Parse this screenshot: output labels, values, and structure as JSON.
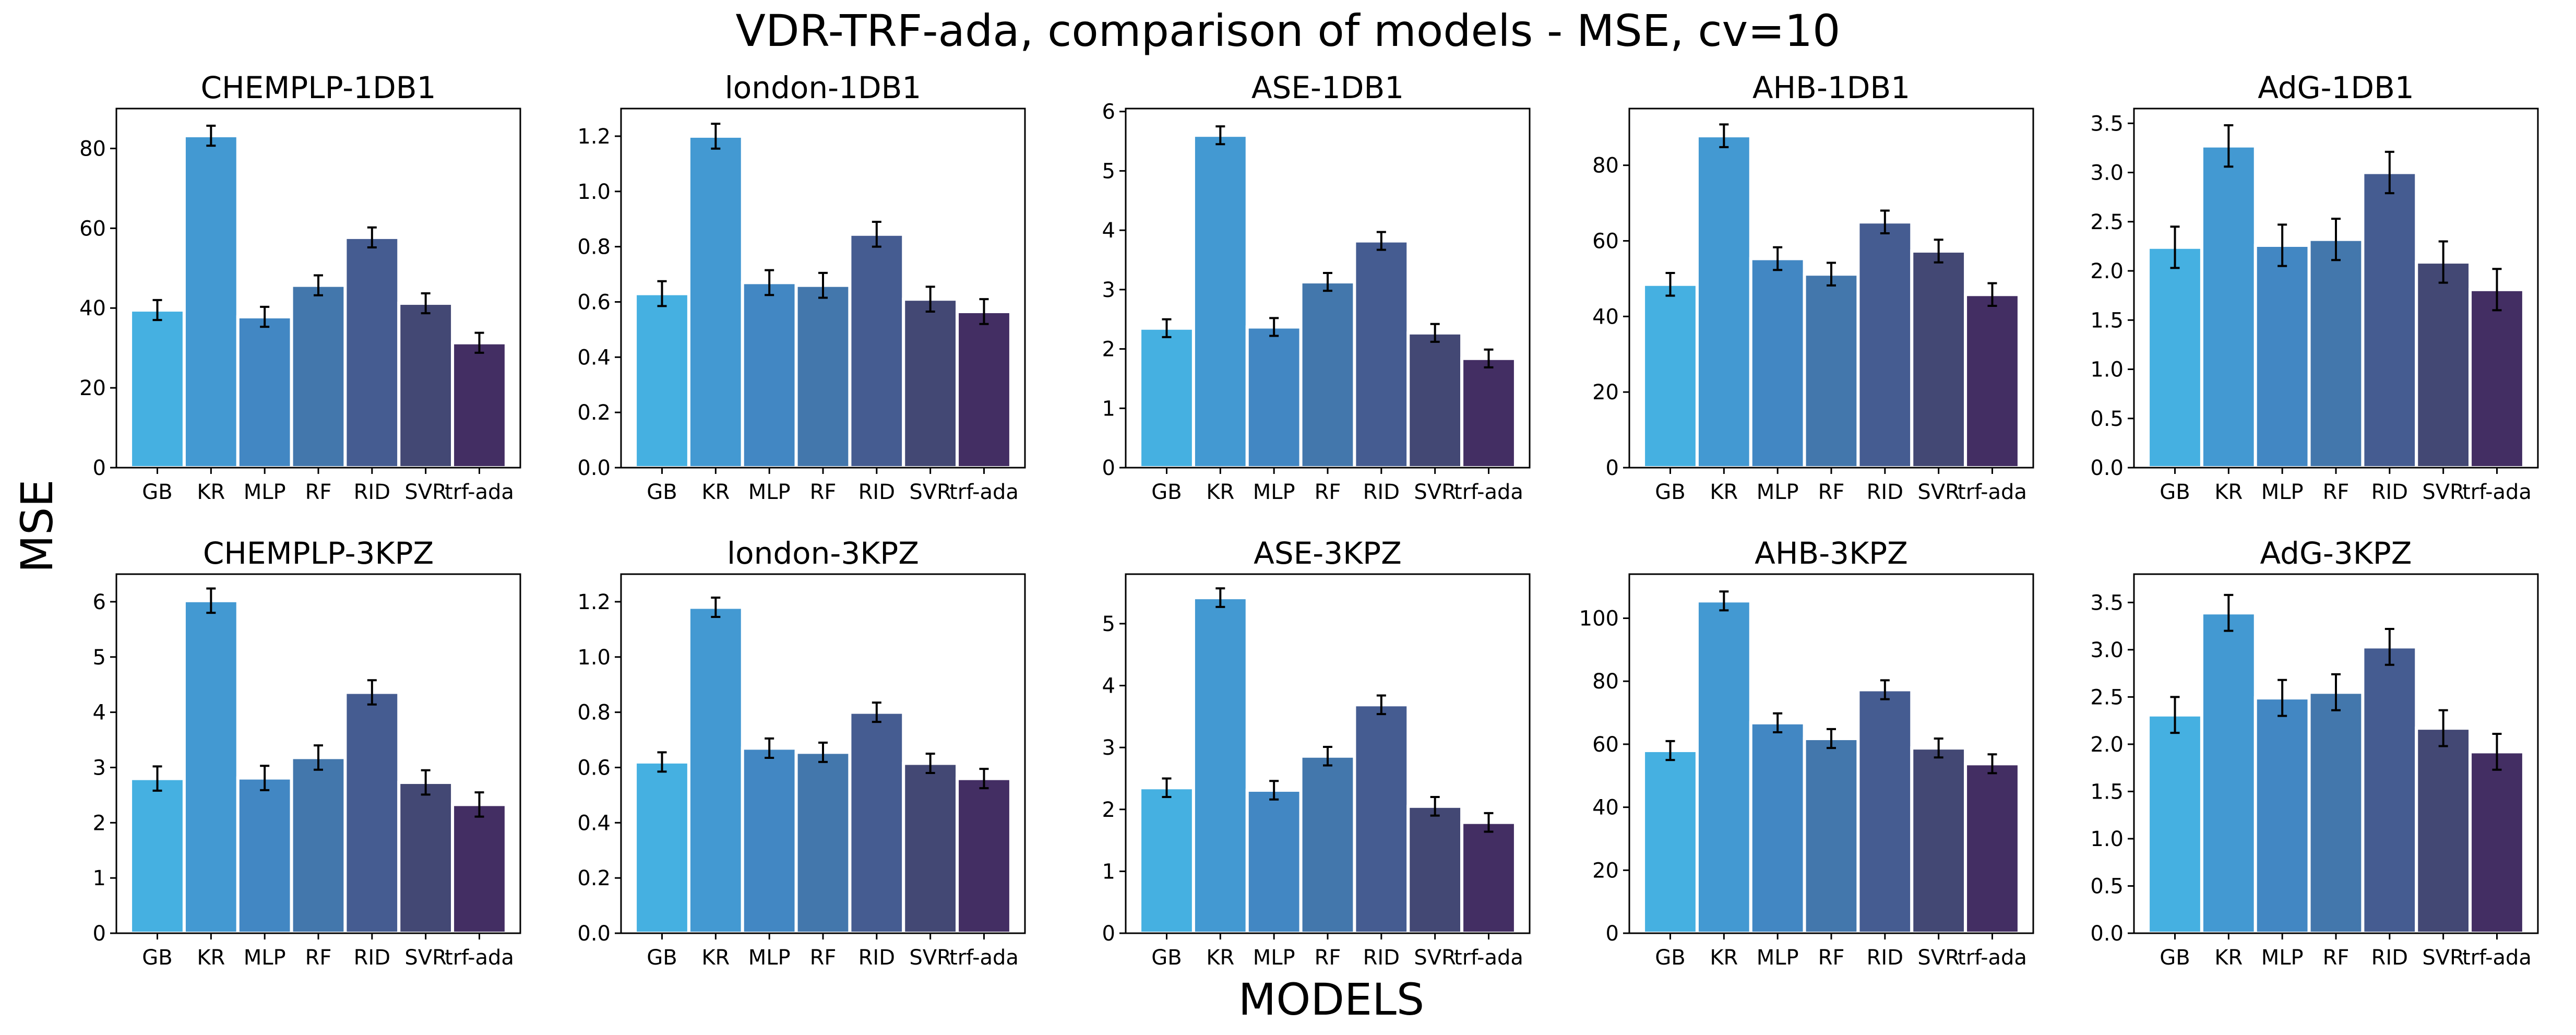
{
  "figure": {
    "suptitle": "VDR-TRF-ada, comparison of models - MSE, cv=10",
    "ylabel": "MSE",
    "xlabel": "MODELS"
  },
  "colors": [
    "#45b0e1",
    "#4399d2",
    "#4287c3",
    "#4377ac",
    "#455c91",
    "#434874",
    "#432e63"
  ],
  "chart_data": [
    {
      "type": "bar",
      "title": "CHEMPLP-1DB1",
      "categories": [
        "GB",
        "KR",
        "MLP",
        "RF",
        "RID",
        "SVR",
        "trf-ada"
      ],
      "values": [
        39.5,
        83.2,
        37.8,
        45.7,
        57.7,
        41.2,
        31.3
      ],
      "errors": [
        2.5,
        2.5,
        2.5,
        2.5,
        2.5,
        2.5,
        2.5
      ],
      "ylim": [
        0,
        90
      ],
      "yticks": [
        0,
        20,
        40,
        60,
        80
      ],
      "ytick_labels": [
        "0",
        "20",
        "40",
        "60",
        "80"
      ]
    },
    {
      "type": "bar",
      "title": "london-1DB1",
      "categories": [
        "GB",
        "KR",
        "MLP",
        "RF",
        "RID",
        "SVR",
        "trf-ada"
      ],
      "values": [
        0.63,
        1.2,
        0.67,
        0.66,
        0.845,
        0.61,
        0.565
      ],
      "errors": [
        0.045,
        0.045,
        0.045,
        0.045,
        0.045,
        0.045,
        0.045
      ],
      "ylim": [
        0,
        1.3
      ],
      "yticks": [
        0,
        0.2,
        0.4,
        0.6,
        0.8,
        1.0,
        1.2
      ],
      "ytick_labels": [
        "0.0",
        "0.2",
        "0.4",
        "0.6",
        "0.8",
        "1.0",
        "1.2"
      ]
    },
    {
      "type": "bar",
      "title": "ASE-1DB1",
      "categories": [
        "GB",
        "KR",
        "MLP",
        "RF",
        "RID",
        "SVR",
        "trf-ada"
      ],
      "values": [
        2.35,
        5.6,
        2.37,
        3.13,
        3.82,
        2.27,
        1.84
      ],
      "errors": [
        0.15,
        0.15,
        0.15,
        0.15,
        0.15,
        0.15,
        0.15
      ],
      "ylim": [
        0,
        6.05
      ],
      "yticks": [
        0,
        1,
        2,
        3,
        4,
        5,
        6
      ],
      "ytick_labels": [
        "0",
        "1",
        "2",
        "3",
        "4",
        "5",
        "6"
      ]
    },
    {
      "type": "bar",
      "title": "AHB-1DB1",
      "categories": [
        "GB",
        "KR",
        "MLP",
        "RF",
        "RID",
        "SVR",
        "trf-ada"
      ],
      "values": [
        48.5,
        87.8,
        55.3,
        51.2,
        65.0,
        57.3,
        45.8
      ],
      "errors": [
        3.0,
        3.0,
        3.0,
        3.0,
        3.0,
        3.0,
        3.0
      ],
      "ylim": [
        0,
        95
      ],
      "yticks": [
        0,
        20,
        40,
        60,
        80
      ],
      "ytick_labels": [
        "0",
        "20",
        "40",
        "60",
        "80"
      ]
    },
    {
      "type": "bar",
      "title": "AdG-1DB1",
      "categories": [
        "GB",
        "KR",
        "MLP",
        "RF",
        "RID",
        "SVR",
        "trf-ada"
      ],
      "values": [
        2.24,
        3.27,
        2.26,
        2.32,
        3.0,
        2.09,
        1.81
      ],
      "errors": [
        0.21,
        0.21,
        0.21,
        0.21,
        0.21,
        0.21,
        0.21
      ],
      "ylim": [
        0,
        3.65
      ],
      "yticks": [
        0,
        0.5,
        1.0,
        1.5,
        2.0,
        2.5,
        3.0,
        3.5
      ],
      "ytick_labels": [
        "0.0",
        "0.5",
        "1.0",
        "1.5",
        "2.0",
        "2.5",
        "3.0",
        "3.5"
      ]
    },
    {
      "type": "bar",
      "title": "CHEMPLP-3KPZ",
      "categories": [
        "GB",
        "KR",
        "MLP",
        "RF",
        "RID",
        "SVR",
        "trf-ada"
      ],
      "values": [
        2.8,
        6.02,
        2.81,
        3.18,
        4.36,
        2.73,
        2.33
      ],
      "errors": [
        0.22,
        0.22,
        0.22,
        0.22,
        0.22,
        0.22,
        0.22
      ],
      "ylim": [
        0,
        6.5
      ],
      "yticks": [
        0,
        1,
        2,
        3,
        4,
        5,
        6
      ],
      "ytick_labels": [
        "0",
        "1",
        "2",
        "3",
        "4",
        "5",
        "6"
      ]
    },
    {
      "type": "bar",
      "title": "london-3KPZ",
      "categories": [
        "GB",
        "KR",
        "MLP",
        "RF",
        "RID",
        "SVR",
        "trf-ada"
      ],
      "values": [
        0.62,
        1.18,
        0.67,
        0.655,
        0.8,
        0.615,
        0.56
      ],
      "errors": [
        0.035,
        0.035,
        0.035,
        0.035,
        0.035,
        0.035,
        0.035
      ],
      "ylim": [
        0,
        1.3
      ],
      "yticks": [
        0,
        0.2,
        0.4,
        0.6,
        0.8,
        1.0,
        1.2
      ],
      "ytick_labels": [
        "0.0",
        "0.2",
        "0.4",
        "0.6",
        "0.8",
        "1.0",
        "1.2"
      ]
    },
    {
      "type": "bar",
      "title": "ASE-3KPZ",
      "categories": [
        "GB",
        "KR",
        "MLP",
        "RF",
        "RID",
        "SVR",
        "trf-ada"
      ],
      "values": [
        2.35,
        5.42,
        2.31,
        2.86,
        3.69,
        2.05,
        1.79
      ],
      "errors": [
        0.15,
        0.15,
        0.15,
        0.15,
        0.15,
        0.15,
        0.15
      ],
      "ylim": [
        0,
        5.8
      ],
      "yticks": [
        0,
        1,
        2,
        3,
        4,
        5
      ],
      "ytick_labels": [
        "0",
        "1",
        "2",
        "3",
        "4",
        "5"
      ]
    },
    {
      "type": "bar",
      "title": "AHB-3KPZ",
      "categories": [
        "GB",
        "KR",
        "MLP",
        "RF",
        "RID",
        "SVR",
        "trf-ada"
      ],
      "values": [
        58.0,
        105.5,
        66.8,
        61.8,
        77.3,
        58.8,
        53.8
      ],
      "errors": [
        3.0,
        3.0,
        3.0,
        3.0,
        3.0,
        3.0,
        3.0
      ],
      "ylim": [
        0,
        114
      ],
      "yticks": [
        0,
        20,
        40,
        60,
        80,
        100
      ],
      "ytick_labels": [
        "0",
        "20",
        "40",
        "60",
        "80",
        "100"
      ]
    },
    {
      "type": "bar",
      "title": "AdG-3KPZ",
      "categories": [
        "GB",
        "KR",
        "MLP",
        "RF",
        "RID",
        "SVR",
        "trf-ada"
      ],
      "values": [
        2.31,
        3.39,
        2.49,
        2.55,
        3.03,
        2.17,
        1.92
      ],
      "errors": [
        0.19,
        0.19,
        0.19,
        0.19,
        0.19,
        0.19,
        0.19
      ],
      "ylim": [
        0,
        3.8
      ],
      "yticks": [
        0,
        0.5,
        1.0,
        1.5,
        2.0,
        2.5,
        3.0,
        3.5
      ],
      "ytick_labels": [
        "0.0",
        "0.5",
        "1.0",
        "1.5",
        "2.0",
        "2.5",
        "3.0",
        "3.5"
      ]
    }
  ]
}
